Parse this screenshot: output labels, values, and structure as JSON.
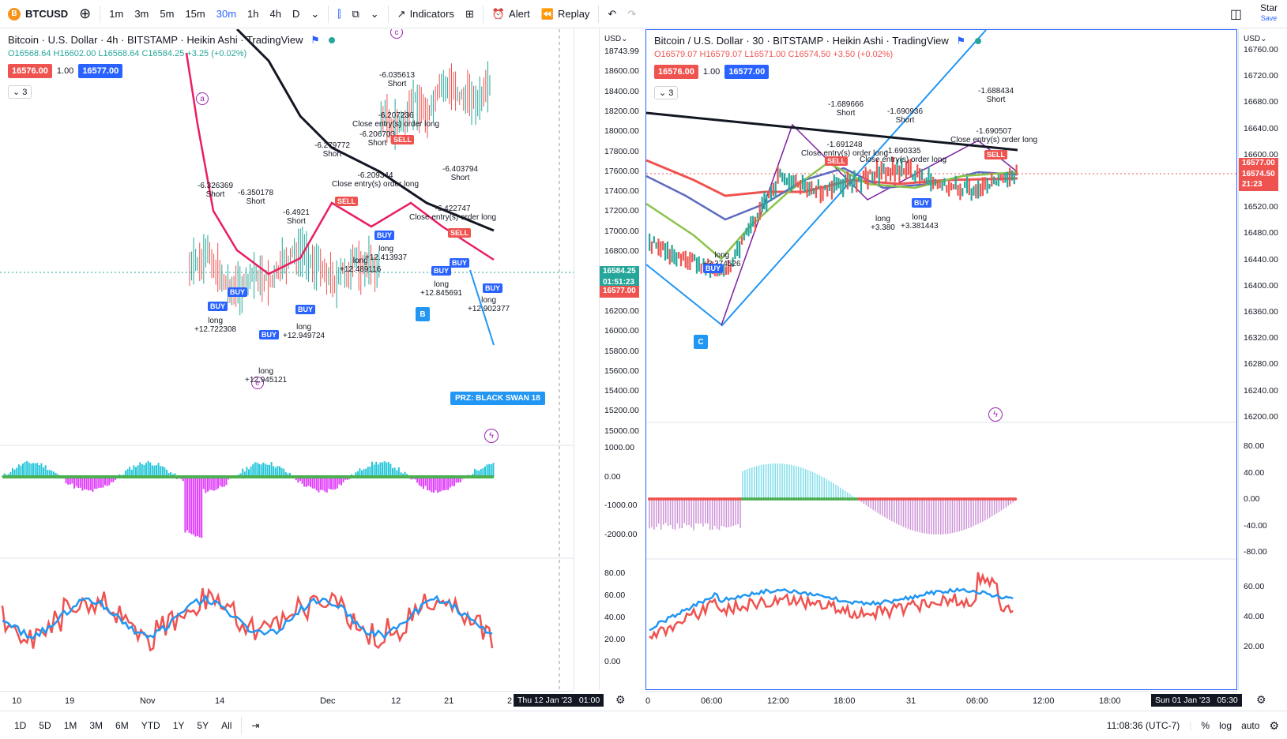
{
  "toolbar": {
    "symbol": "BTCUSD",
    "symbol_icon": "B",
    "intervals": [
      "1m",
      "3m",
      "5m",
      "15m",
      "30m",
      "1h",
      "4h",
      "D"
    ],
    "active_interval": "30m",
    "indicators_label": "Indicators",
    "alert_label": "Alert",
    "replay_label": "Replay",
    "star_label": "Star",
    "save_label": "Save"
  },
  "left_chart": {
    "title": "Bitcoin · U.S. Dollar · 4h · BITSTAMP · Heikin Ashi · TradingView",
    "ohlc": {
      "o": "O16568.64",
      "h": "H16602.00",
      "l": "L16568.64",
      "c": "C16584.25",
      "chg": "+3.25 (+0.02%)"
    },
    "bid": "16576.00",
    "spread": "1.00",
    "ask": "16577.00",
    "collapse": "3",
    "scale_unit": "USD",
    "price_ticks": [
      "18743.99",
      "18600.00",
      "18400.00",
      "18200.00",
      "18000.00",
      "17800.00",
      "17600.00",
      "17400.00",
      "17200.00",
      "17000.00",
      "16800.00",
      "16600.00",
      "16400.00",
      "16200.00",
      "16000.00",
      "15800.00",
      "15600.00",
      "15400.00",
      "15200.00",
      "15000.00"
    ],
    "price_tag_last": "16584.25",
    "price_tag_timer": "01:51:23",
    "price_tag_bid": "16577.00",
    "osc_ticks": [
      "1000.00",
      "0.00",
      "-1000.00",
      "-2000.00"
    ],
    "rsi_ticks": [
      "80.00",
      "60.00",
      "40.00",
      "20.00",
      "0.00"
    ],
    "time_labels": [
      "10",
      "19",
      "Nov",
      "14",
      "Dec",
      "12",
      "21",
      "2"
    ],
    "time_badge": "Thu 12 Jan '23   01:00",
    "prz_label": "PRZ: BLACK SWAN 18",
    "point_b": "B",
    "signals": [
      {
        "text": "-6.035613",
        "sub": "Short"
      },
      {
        "text": "-6.207236",
        "sub": "Close entry(s) order long"
      },
      {
        "text": "-6.206703",
        "sub": "Short"
      },
      {
        "text": "-6.279772",
        "sub": "Short"
      },
      {
        "text": "-6.209344",
        "sub": "Close entry(s) order long"
      },
      {
        "text": "-6.403794",
        "sub": "Short"
      },
      {
        "text": "-6.422747",
        "sub": "Close entry(s) order long"
      },
      {
        "text": "-6.326369",
        "sub": "Short"
      },
      {
        "text": "-6.350178",
        "sub": "Short"
      },
      {
        "text": "-6.4921",
        "sub": "Short"
      },
      {
        "text": "+12.722308",
        "sub": "long"
      },
      {
        "text": "+12.949724",
        "sub": "long"
      },
      {
        "text": "+12.945121",
        "sub": "long"
      },
      {
        "text": "+12.489116",
        "sub": "long"
      },
      {
        "text": "+12.413937",
        "sub": "long"
      },
      {
        "text": "+12.845691",
        "sub": "long"
      },
      {
        "text": "+12.902377",
        "sub": "long"
      }
    ],
    "buy_label": "BUY",
    "sell_label": "SELL",
    "circle_a": "a",
    "circle_c": "c",
    "circle_e": "e"
  },
  "right_chart": {
    "title": "Bitcoin / U.S. Dollar · 30 · BITSTAMP · Heikin Ashi · TradingView",
    "ohlc": {
      "o": "O16579.07",
      "h": "H16579.07",
      "l": "L16571.00",
      "c": "C16574.50",
      "chg": "+3.50 (+0.02%)"
    },
    "bid": "16576.00",
    "spread": "1.00",
    "ask": "16577.00",
    "collapse": "3",
    "scale_unit": "USD",
    "price_ticks": [
      "16760.00",
      "16720.00",
      "16680.00",
      "16640.00",
      "16600.00",
      "16560.00",
      "16520.00",
      "16480.00",
      "16440.00",
      "16400.00",
      "16360.00",
      "16320.00",
      "16280.00",
      "16240.00",
      "16200.00"
    ],
    "price_tag_ask": "16577.00",
    "price_tag_last": "16574.50",
    "price_tag_timer": "21:23",
    "osc_ticks": [
      "80.00",
      "40.00",
      "0.00",
      "-40.00",
      "-80.00"
    ],
    "rsi_ticks": [
      "60.00",
      "40.00",
      "20.00"
    ],
    "time_labels": [
      "0",
      "06:00",
      "12:00",
      "18:00",
      "31",
      "06:00",
      "12:00",
      "18:00"
    ],
    "time_badge": "Sun 01 Jan '23   05:30",
    "point_c": "C",
    "signals": [
      {
        "text": "-1.688434",
        "sub": "Short"
      },
      {
        "text": "-1.689666",
        "sub": "Short"
      },
      {
        "text": "-1.690936",
        "sub": "Short"
      },
      {
        "text": "-1.690507",
        "sub": "Close entry(s) order long"
      },
      {
        "text": "-1.691248",
        "sub": "Close entry(s) order long"
      },
      {
        "text": "-1.690335",
        "sub": "Close entry(s) order long"
      },
      {
        "text": "+3.380",
        "sub": "long"
      },
      {
        "text": "+3.381443",
        "sub": "long"
      },
      {
        "text": "+3.374526",
        "sub": "long"
      }
    ],
    "buy_label": "BUY",
    "sell_label": "SELL"
  },
  "bottombar": {
    "ranges": [
      "1D",
      "5D",
      "1M",
      "3M",
      "6M",
      "YTD",
      "1Y",
      "5Y",
      "All"
    ],
    "clock": "11:08:36 (UTC-7)",
    "percent": "%",
    "log": "log",
    "auto": "auto"
  },
  "colors": {
    "up": "#26a69a",
    "down": "#ef5350",
    "accent": "#2962ff",
    "harmonic": "#2196f3",
    "pattern": "#9c27b0"
  }
}
